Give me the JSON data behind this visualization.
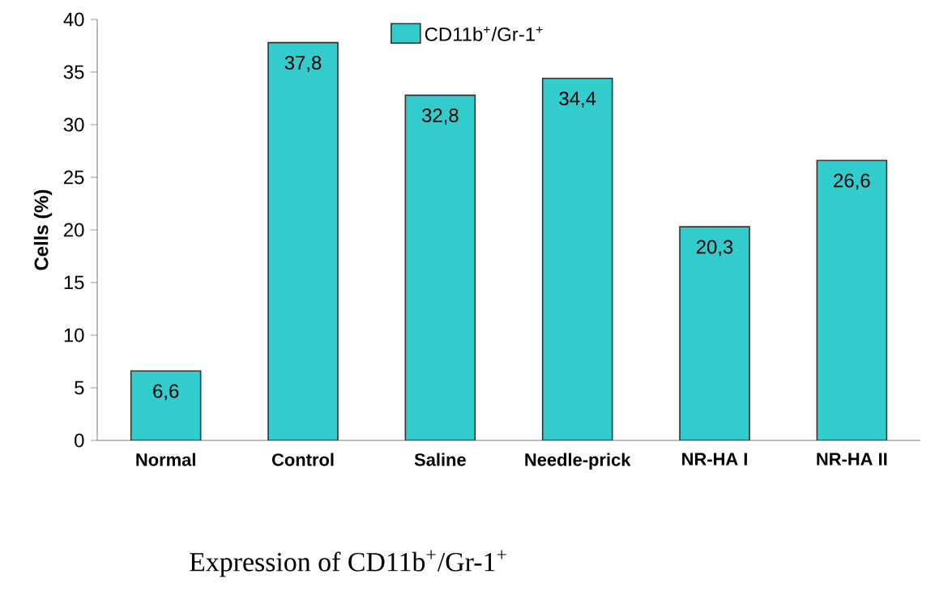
{
  "chart_data": {
    "type": "bar",
    "title": "Expression of CD11b$^{+}$/Gr-1$^{+}$",
    "ylabel": "Cells (%)",
    "categories": [
      "Normal",
      "Control",
      "Saline",
      "Needle-prick",
      "NR-HA I",
      "NR-HA II"
    ],
    "series": [
      {
        "name": "CD11b$^{+}$/Gr-1$^{+}$",
        "color": "#33cccc",
        "values": [
          6.6,
          37.8,
          32.8,
          34.4,
          20.3,
          26.6
        ],
        "value_labels": [
          "6,6",
          "37,8",
          "32,8",
          "34,4",
          "20,3",
          "26,6"
        ]
      }
    ],
    "ylim": [
      0,
      40
    ],
    "yticks": [
      0,
      5,
      10,
      15,
      20,
      25,
      30,
      35,
      40
    ],
    "grid": false,
    "legend": "top"
  }
}
